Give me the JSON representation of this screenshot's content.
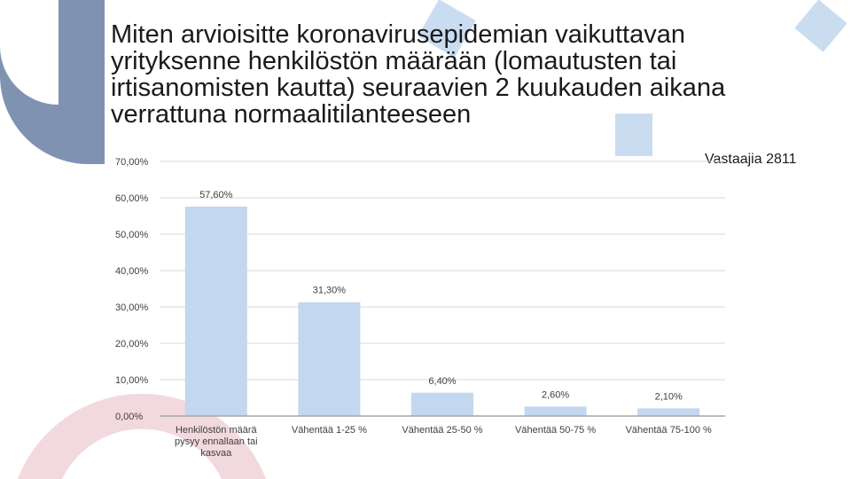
{
  "title": "Miten arvioisitte koronavirusepidemian vaikuttavan yrityksenne henkilöstön määrään (lomautusten tai irtisanomisten kautta) seuraavien 2 kuukauden aikana verrattuna normaalitilanteeseen",
  "respondents": "Vastaajia 2811",
  "colors": {
    "bar": "#c3d7ee",
    "grid": "#d9d9d9",
    "decor_blue": "#c9dcf0",
    "decor_slate": "#7f92b1",
    "decor_pink": "#f2d9de"
  },
  "chart_data": {
    "type": "bar",
    "categories": [
      "Henkilöstön määrä pysyy ennallaan tai kasvaa",
      "Vähentää 1-25 %",
      "Vähentää 25-50 %",
      "Vähentää 50-75 %",
      "Vähentää 75-100 %"
    ],
    "values": [
      57.6,
      31.3,
      6.4,
      2.6,
      2.1
    ],
    "data_labels": [
      "57,60%",
      "31,30%",
      "6,40%",
      "2,60%",
      "2,10%"
    ],
    "y_ticks": [
      "0,00%",
      "10,00%",
      "20,00%",
      "30,00%",
      "40,00%",
      "50,00%",
      "60,00%",
      "70,00%"
    ],
    "ylim": [
      0,
      70
    ],
    "grid": true,
    "legend": "none"
  }
}
